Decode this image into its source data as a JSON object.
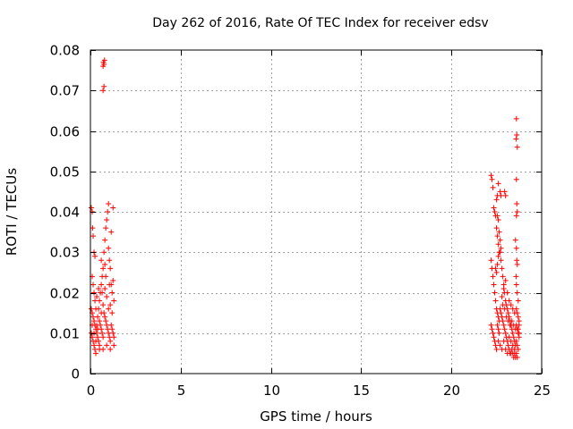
{
  "chart_data": {
    "type": "scatter",
    "title": "Day 262 of 2016, Rate Of TEC Index for receiver edsv",
    "xlabel": "GPS time / hours",
    "ylabel": "ROTI / TECUs",
    "xlim": [
      0,
      25
    ],
    "ylim": [
      0,
      0.08
    ],
    "xticks": [
      0,
      5,
      10,
      15,
      20,
      25
    ],
    "yticks": [
      0,
      0.01,
      0.02,
      0.03,
      0.04,
      0.05,
      0.06,
      0.07,
      0.08
    ],
    "xtick_labels": [
      "0",
      "5",
      "10",
      "15",
      "20",
      "25"
    ],
    "ytick_labels": [
      "0",
      "0.01",
      "0.02",
      "0.03",
      "0.04",
      "0.05",
      "0.06",
      "0.07",
      "0.08"
    ],
    "grid": true,
    "marker": "+",
    "color": "#ff0000",
    "series": [
      {
        "name": "ROTI",
        "points": [
          [
            0.05,
            0.041
          ],
          [
            0.1,
            0.04
          ],
          [
            0.12,
            0.036
          ],
          [
            0.15,
            0.034
          ],
          [
            0.2,
            0.03
          ],
          [
            0.25,
            0.029
          ],
          [
            0.1,
            0.024
          ],
          [
            0.15,
            0.022
          ],
          [
            0.2,
            0.02
          ],
          [
            0.25,
            0.018
          ],
          [
            0.05,
            0.016
          ],
          [
            0.1,
            0.015
          ],
          [
            0.15,
            0.014
          ],
          [
            0.2,
            0.013
          ],
          [
            0.25,
            0.012
          ],
          [
            0.3,
            0.011
          ],
          [
            0.05,
            0.01
          ],
          [
            0.1,
            0.009
          ],
          [
            0.15,
            0.008
          ],
          [
            0.2,
            0.007
          ],
          [
            0.25,
            0.006
          ],
          [
            0.3,
            0.005
          ],
          [
            0.35,
            0.012
          ],
          [
            0.4,
            0.014
          ],
          [
            0.45,
            0.016
          ],
          [
            0.5,
            0.018
          ],
          [
            0.35,
            0.01
          ],
          [
            0.4,
            0.009
          ],
          [
            0.45,
            0.008
          ],
          [
            0.5,
            0.007
          ],
          [
            0.55,
            0.02
          ],
          [
            0.6,
            0.022
          ],
          [
            0.55,
            0.012
          ],
          [
            0.6,
            0.011
          ],
          [
            0.65,
            0.01
          ],
          [
            0.7,
            0.009
          ],
          [
            0.65,
            0.024
          ],
          [
            0.7,
            0.026
          ],
          [
            0.75,
            0.03
          ],
          [
            0.8,
            0.033
          ],
          [
            0.75,
            0.015
          ],
          [
            0.8,
            0.014
          ],
          [
            0.85,
            0.013
          ],
          [
            0.9,
            0.012
          ],
          [
            0.85,
            0.036
          ],
          [
            0.9,
            0.038
          ],
          [
            0.95,
            0.04
          ],
          [
            1.0,
            0.042
          ],
          [
            0.95,
            0.011
          ],
          [
            1.0,
            0.01
          ],
          [
            1.05,
            0.009
          ],
          [
            1.1,
            0.008
          ],
          [
            1.05,
            0.028
          ],
          [
            1.1,
            0.026
          ],
          [
            1.15,
            0.022
          ],
          [
            1.2,
            0.02
          ],
          [
            1.15,
            0.012
          ],
          [
            1.2,
            0.011
          ],
          [
            1.25,
            0.01
          ],
          [
            1.3,
            0.009
          ],
          [
            1.25,
            0.041
          ],
          [
            1.3,
            0.018
          ],
          [
            1.2,
            0.015
          ],
          [
            1.1,
            0.017
          ],
          [
            1.0,
            0.016
          ],
          [
            0.9,
            0.019
          ],
          [
            0.8,
            0.021
          ],
          [
            0.7,
            0.017
          ],
          [
            0.6,
            0.015
          ],
          [
            0.5,
            0.013
          ],
          [
            0.4,
            0.011
          ],
          [
            0.3,
            0.016
          ],
          [
            0.2,
            0.01
          ],
          [
            0.1,
            0.012
          ],
          [
            0.3,
            0.008
          ],
          [
            0.5,
            0.006
          ],
          [
            0.7,
            0.006
          ],
          [
            0.9,
            0.007
          ],
          [
            1.1,
            0.006
          ],
          [
            1.3,
            0.007
          ],
          [
            0.35,
            0.019
          ],
          [
            0.45,
            0.021
          ],
          [
            0.65,
            0.02
          ],
          [
            0.85,
            0.024
          ],
          [
            1.05,
            0.022
          ],
          [
            1.25,
            0.023
          ],
          [
            0.6,
            0.028
          ],
          [
            0.8,
            0.027
          ],
          [
            1.0,
            0.031
          ],
          [
            1.15,
            0.035
          ],
          [
            0.7,
            0.07
          ],
          [
            0.75,
            0.071
          ],
          [
            0.7,
            0.076
          ],
          [
            0.75,
            0.0765
          ],
          [
            0.72,
            0.077
          ],
          [
            0.78,
            0.0775
          ],
          [
            22.2,
            0.049
          ],
          [
            22.25,
            0.048
          ],
          [
            22.3,
            0.046
          ],
          [
            22.35,
            0.041
          ],
          [
            22.4,
            0.04
          ],
          [
            22.45,
            0.039
          ],
          [
            22.5,
            0.036
          ],
          [
            22.55,
            0.034
          ],
          [
            22.6,
            0.032
          ],
          [
            22.65,
            0.03
          ],
          [
            22.2,
            0.028
          ],
          [
            22.25,
            0.026
          ],
          [
            22.3,
            0.024
          ],
          [
            22.35,
            0.022
          ],
          [
            22.4,
            0.02
          ],
          [
            22.45,
            0.018
          ],
          [
            22.5,
            0.016
          ],
          [
            22.55,
            0.015
          ],
          [
            22.6,
            0.014
          ],
          [
            22.65,
            0.013
          ],
          [
            22.2,
            0.012
          ],
          [
            22.25,
            0.011
          ],
          [
            22.3,
            0.01
          ],
          [
            22.35,
            0.009
          ],
          [
            22.4,
            0.008
          ],
          [
            22.45,
            0.007
          ],
          [
            22.5,
            0.006
          ],
          [
            22.55,
            0.012
          ],
          [
            22.6,
            0.011
          ],
          [
            22.65,
            0.01
          ],
          [
            22.7,
            0.045
          ],
          [
            22.75,
            0.044
          ],
          [
            22.7,
            0.03
          ],
          [
            22.75,
            0.028
          ],
          [
            22.8,
            0.026
          ],
          [
            22.85,
            0.024
          ],
          [
            22.9,
            0.022
          ],
          [
            22.95,
            0.02
          ],
          [
            23.0,
            0.018
          ],
          [
            23.05,
            0.017
          ],
          [
            22.7,
            0.016
          ],
          [
            22.75,
            0.015
          ],
          [
            22.8,
            0.014
          ],
          [
            22.85,
            0.013
          ],
          [
            22.9,
            0.012
          ],
          [
            22.95,
            0.011
          ],
          [
            23.0,
            0.01
          ],
          [
            23.05,
            0.009
          ],
          [
            23.1,
            0.008
          ],
          [
            23.15,
            0.007
          ],
          [
            23.1,
            0.016
          ],
          [
            23.15,
            0.015
          ],
          [
            23.2,
            0.014
          ],
          [
            23.25,
            0.013
          ],
          [
            23.3,
            0.012
          ],
          [
            23.35,
            0.011
          ],
          [
            23.4,
            0.01
          ],
          [
            23.45,
            0.009
          ],
          [
            23.5,
            0.008
          ],
          [
            23.55,
            0.007
          ],
          [
            23.2,
            0.006
          ],
          [
            23.25,
            0.005
          ],
          [
            23.3,
            0.005
          ],
          [
            23.35,
            0.006
          ],
          [
            23.4,
            0.005
          ],
          [
            23.45,
            0.004
          ],
          [
            23.5,
            0.005
          ],
          [
            23.55,
            0.004
          ],
          [
            23.6,
            0.005
          ],
          [
            23.65,
            0.004
          ],
          [
            23.6,
            0.063
          ],
          [
            23.62,
            0.059
          ],
          [
            23.58,
            0.058
          ],
          [
            23.65,
            0.056
          ],
          [
            23.6,
            0.048
          ],
          [
            23.62,
            0.042
          ],
          [
            23.65,
            0.04
          ],
          [
            23.6,
            0.039
          ],
          [
            23.55,
            0.033
          ],
          [
            23.6,
            0.031
          ],
          [
            23.62,
            0.028
          ],
          [
            23.65,
            0.027
          ],
          [
            23.58,
            0.024
          ],
          [
            23.6,
            0.022
          ],
          [
            23.65,
            0.02
          ],
          [
            23.7,
            0.018
          ],
          [
            23.6,
            0.016
          ],
          [
            23.65,
            0.015
          ],
          [
            23.7,
            0.014
          ],
          [
            23.75,
            0.013
          ],
          [
            23.6,
            0.012
          ],
          [
            23.65,
            0.011
          ],
          [
            23.7,
            0.01
          ],
          [
            23.75,
            0.009
          ],
          [
            23.6,
            0.008
          ],
          [
            23.65,
            0.007
          ],
          [
            23.7,
            0.006
          ],
          [
            23.75,
            0.012
          ],
          [
            23.7,
            0.011
          ],
          [
            23.75,
            0.01
          ],
          [
            22.8,
            0.019
          ],
          [
            22.9,
            0.021
          ],
          [
            23.0,
            0.023
          ],
          [
            23.1,
            0.02
          ],
          [
            23.2,
            0.018
          ],
          [
            23.3,
            0.017
          ],
          [
            23.4,
            0.016
          ],
          [
            23.5,
            0.015
          ],
          [
            22.85,
            0.017
          ],
          [
            22.95,
            0.016
          ],
          [
            23.05,
            0.014
          ],
          [
            23.15,
            0.013
          ],
          [
            23.25,
            0.012
          ],
          [
            23.35,
            0.013
          ],
          [
            23.45,
            0.012
          ],
          [
            23.55,
            0.011
          ],
          [
            22.6,
            0.008
          ],
          [
            22.7,
            0.007
          ],
          [
            22.8,
            0.006
          ],
          [
            22.9,
            0.008
          ],
          [
            23.0,
            0.006
          ],
          [
            23.1,
            0.005
          ],
          [
            23.2,
            0.009
          ],
          [
            23.3,
            0.008
          ],
          [
            23.4,
            0.007
          ],
          [
            23.5,
            0.006
          ],
          [
            22.45,
            0.026
          ],
          [
            22.5,
            0.025
          ],
          [
            22.55,
            0.027
          ],
          [
            22.6,
            0.029
          ],
          [
            22.5,
            0.043
          ],
          [
            22.55,
            0.044
          ],
          [
            22.6,
            0.047
          ],
          [
            22.55,
            0.039
          ],
          [
            22.6,
            0.038
          ],
          [
            22.65,
            0.035
          ],
          [
            22.7,
            0.033
          ],
          [
            22.75,
            0.031
          ],
          [
            23.0,
            0.044
          ],
          [
            22.95,
            0.045
          ]
        ]
      }
    ]
  }
}
